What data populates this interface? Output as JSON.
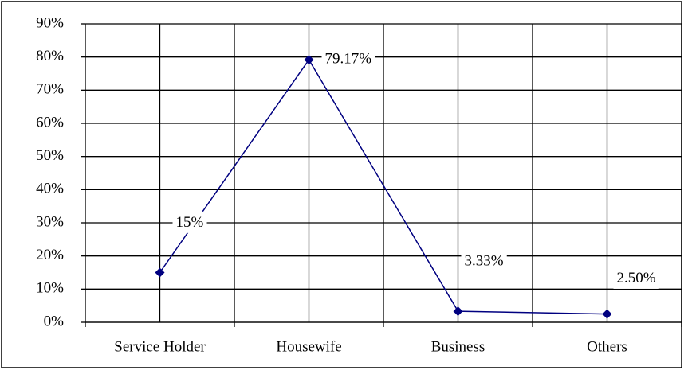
{
  "chart_data": {
    "type": "line",
    "categories": [
      "Service Holder",
      "Housewife",
      "Business",
      "Others"
    ],
    "series": [
      {
        "color": "#000080",
        "values": [
          15,
          79.17,
          3.33,
          2.5
        ],
        "value_labels": [
          "15%",
          "79.17%",
          "3.33%",
          "2.50%"
        ]
      }
    ],
    "ylim": [
      0,
      90
    ],
    "yticks": [
      {
        "value": 0,
        "label": "0%"
      },
      {
        "value": 10,
        "label": "10%"
      },
      {
        "value": 20,
        "label": "20%"
      },
      {
        "value": 30,
        "label": "30%"
      },
      {
        "value": 40,
        "label": "40%"
      },
      {
        "value": 50,
        "label": "50%"
      },
      {
        "value": 60,
        "label": "60%"
      },
      {
        "value": 70,
        "label": "70%"
      },
      {
        "value": 80,
        "label": "80%"
      },
      {
        "value": 90,
        "label": "90%"
      }
    ],
    "grid": true
  }
}
